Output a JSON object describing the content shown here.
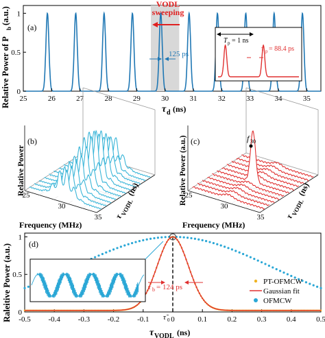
{
  "chart_data": [
    {
      "panel": "(a)",
      "type": "line",
      "xlabel_main": "τ",
      "xlabel_sub": "d",
      "xlabel_unit": "(ns)",
      "ylabel_main": "Relative Power of P",
      "ylabel_sub": "b",
      "ylabel_unit": "(a.u.)",
      "xlim": [
        25,
        35.5
      ],
      "ylim": [
        0,
        1.1
      ],
      "xticks": [
        "25",
        "26",
        "27",
        "28",
        "29",
        "30",
        "31",
        "32",
        "33",
        "34",
        "35"
      ],
      "yticks": [
        "0",
        "0.5",
        "1"
      ],
      "pulse_centers": [
        25.85,
        26.85,
        27.85,
        28.85,
        29.85,
        30.85,
        31.85,
        32.85,
        33.85,
        34.85
      ],
      "pulse_peak": 1.0,
      "pulse_fwhm_ns": 0.125,
      "sweep_band": [
        29.5,
        30.5
      ],
      "annotations": {
        "sweep_label_1": "VODL",
        "sweep_label_2": "sweeping",
        "width_label": "125 ps",
        "inset_tp_main": "T",
        "inset_tp_sub": "p",
        "inset_tp_val": "= 1 ns",
        "inset_tau_main": "τ",
        "inset_tau_sub": "p",
        "inset_tau_val": "= 88.4 ps"
      },
      "colors": {
        "trace": "#1f77b4",
        "inset": "#e03030",
        "sweep": "#e02020"
      }
    },
    {
      "panel": "(b)",
      "type": "line",
      "view": "3d-waterfall",
      "xlabel": "Frequency (MHz)",
      "ylabel_main": "τ",
      "ylabel_sub": "VODL",
      "ylabel_unit": "(ns)",
      "zlabel": "Relative Power",
      "xticks": [
        "25",
        "30",
        "35"
      ],
      "n_traces": 11,
      "color": "#3ab5d8"
    },
    {
      "panel": "(c)",
      "type": "line",
      "view": "3d-waterfall",
      "xlabel": "Frequency (MHz)",
      "ylabel_main": "τ",
      "ylabel_sub": "VODL",
      "ylabel_unit": "(ns)",
      "zlabel": "Relative Power (a.u.)",
      "xticks": [
        "25",
        "30",
        "35"
      ],
      "peak_label_main": "f",
      "peak_label_sub": "30",
      "n_traces": 11,
      "color": "#e03030"
    },
    {
      "panel": "(d)",
      "type": "line",
      "xlabel_main": "τ",
      "xlabel_sub": "VODL",
      "xlabel_unit": "(ns)",
      "ylabel": "Raleitive Power (a.u.)",
      "xlim": [
        -0.5,
        0.5
      ],
      "ylim": [
        0,
        1.05
      ],
      "xticks": [
        "-0.5",
        "-0.4",
        "-0.3",
        "-0.2",
        "-0.1",
        "0",
        "0.1",
        "0.2",
        "0.3",
        "0.4",
        "0.5"
      ],
      "yticks": [
        "0",
        "0.5",
        "1"
      ],
      "series": [
        {
          "name": "PT-OFMCW",
          "marker": "dot",
          "color": "#f0b323",
          "center": 0,
          "sigma": 0.0527,
          "baseline": 0.02,
          "peak": 1.0
        },
        {
          "name": "Gaussian fit",
          "marker": "line",
          "color": "#e03030",
          "center": 0,
          "sigma": 0.0527,
          "baseline": 0.02,
          "peak": 1.0
        },
        {
          "name": "OFMCW",
          "marker": "dot",
          "color": "#2aa7d6",
          "center": 0,
          "sigma": 0.33,
          "baseline": 0.0,
          "peak": 1.0
        }
      ],
      "annotations": {
        "tau_main": "τ",
        "tau_sub": "b",
        "tau_val": "= 124 ps",
        "center_main": "τ̃",
        "center_sub": "0"
      }
    }
  ]
}
